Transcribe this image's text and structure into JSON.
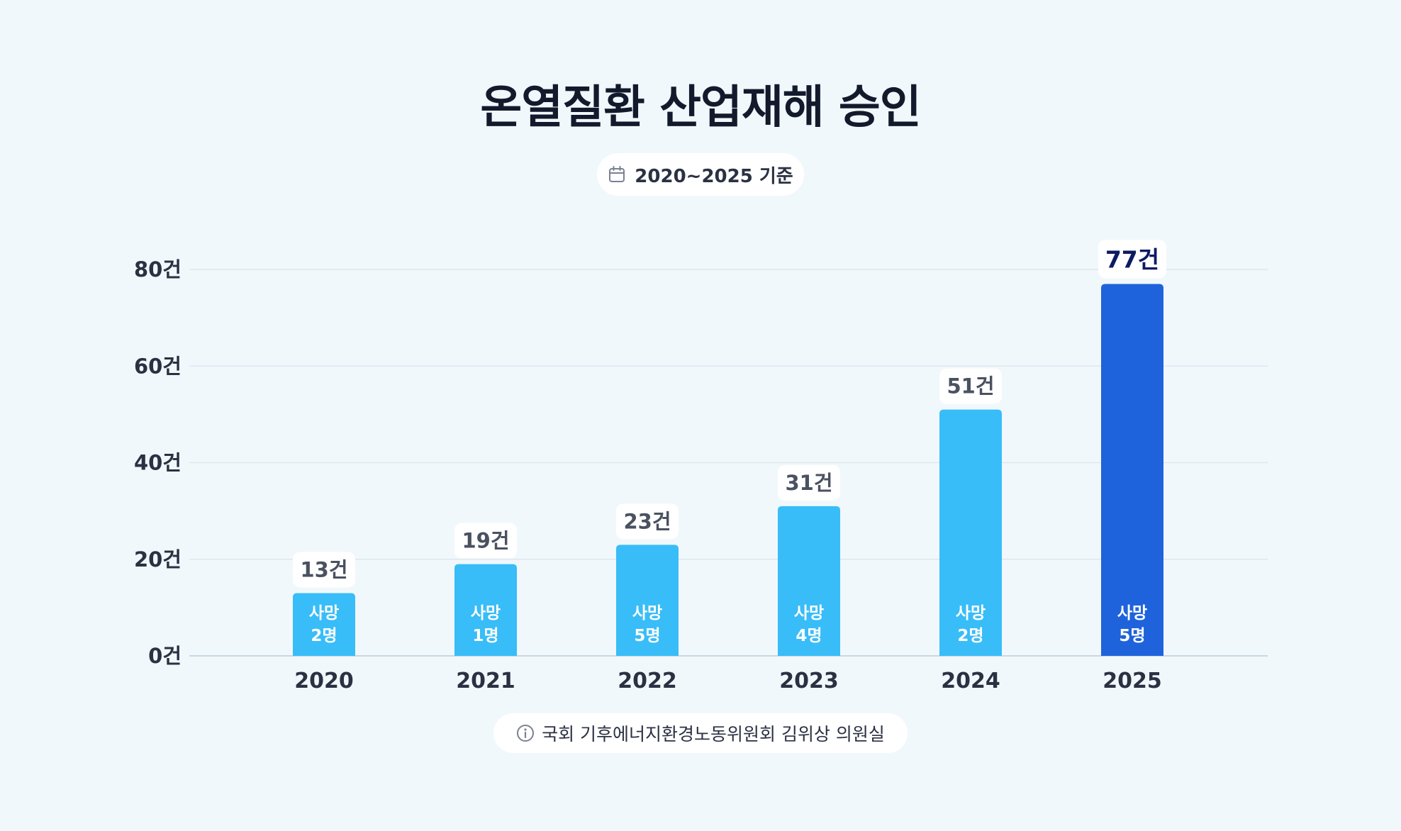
{
  "title": "온열질환 산업재해 승인",
  "period_badge": "2020~2025 기준",
  "source_note": "국회 기후에너지환경노동위원회 김위상 의원실",
  "icons": {
    "period": "calendar-icon",
    "source": "info-icon"
  },
  "colors": {
    "background": "#f1f8fb",
    "bar": "#38bdf8",
    "bar_highlight": "#1f63dc",
    "highlight_label": "#0d1a63",
    "grid": "#dbe7ef"
  },
  "chart_data": {
    "type": "bar",
    "title": "온열질환 산업재해 승인",
    "subtitle": "2020~2025 기준",
    "categories": [
      "2020",
      "2021",
      "2022",
      "2023",
      "2024",
      "2025"
    ],
    "values": [
      13,
      19,
      23,
      31,
      51,
      77
    ],
    "value_labels": [
      "13건",
      "19건",
      "23건",
      "31건",
      "51건",
      "77건"
    ],
    "deaths": [
      2,
      1,
      5,
      4,
      2,
      5
    ],
    "death_label_top": "사망",
    "death_labels": [
      "2명",
      "1명",
      "5명",
      "4명",
      "2명",
      "5명"
    ],
    "highlight_index": 5,
    "ylim": [
      0,
      80
    ],
    "yticks": [
      0,
      20,
      40,
      60,
      80
    ],
    "ytick_labels": [
      "0건",
      "20건",
      "40건",
      "60건",
      "80건"
    ],
    "grid": true,
    "legend": "none"
  }
}
